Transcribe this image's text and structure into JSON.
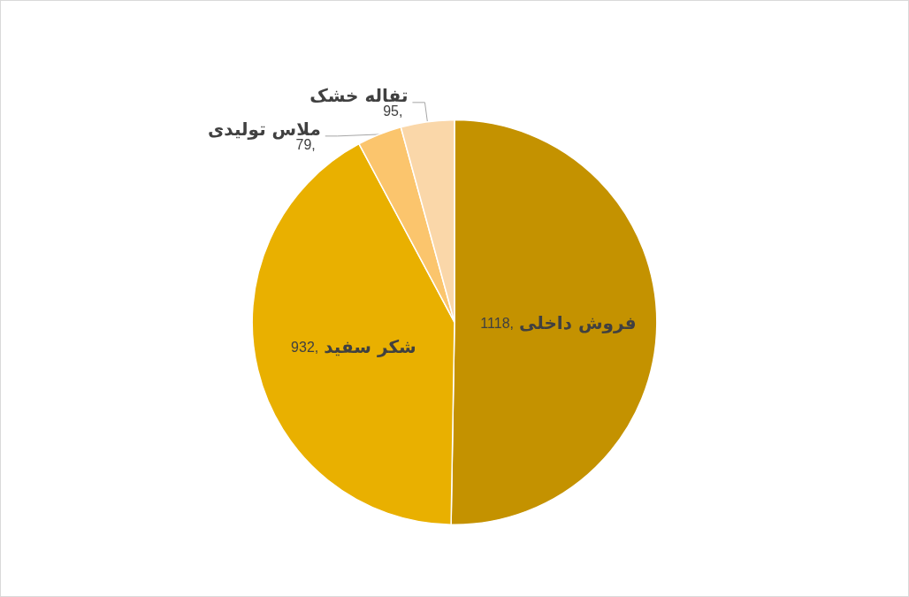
{
  "chart_data": {
    "type": "pie",
    "categories": [
      "فروش داخلی",
      "شکر سفید",
      "ملاس تولیدی",
      "تفاله خشک"
    ],
    "values": [
      1118,
      932,
      79,
      95
    ],
    "value_labels": [
      "1118,",
      "932,",
      "79,",
      "95,"
    ],
    "colors": [
      "#c49200",
      "#e9b000",
      "#fbc56d",
      "#fad7a9"
    ]
  }
}
